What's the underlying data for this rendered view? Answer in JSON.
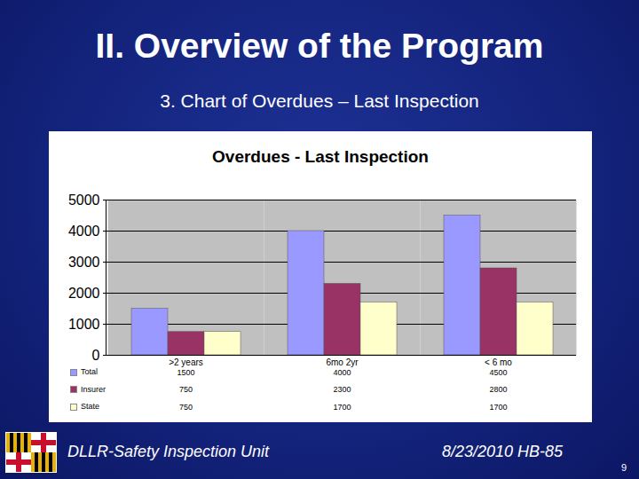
{
  "slide": {
    "title": "II. Overview of the Program",
    "subtitle": "3. Chart of Overdues – Last Inspection",
    "footer_left": "DLLR-Safety Inspection Unit",
    "footer_right": "8/23/2010 HB-85",
    "page_number": 9
  },
  "chart_data": {
    "type": "bar",
    "title": "Overdues - Last Inspection",
    "categories": [
      ">2 years",
      "6mo 2yr",
      "< 6 mo"
    ],
    "series": [
      {
        "name": "Total",
        "color": "#9999ff",
        "values": [
          1500,
          4000,
          4500
        ]
      },
      {
        "name": "Insurer",
        "color": "#993366",
        "values": [
          750,
          2300,
          2800
        ]
      },
      {
        "name": "State",
        "color": "#ffffcc",
        "values": [
          750,
          1700,
          1700
        ]
      }
    ],
    "ylim": [
      0,
      5000
    ],
    "yticks": [
      0,
      1000,
      2000,
      3000,
      4000,
      5000
    ],
    "grid": true
  }
}
